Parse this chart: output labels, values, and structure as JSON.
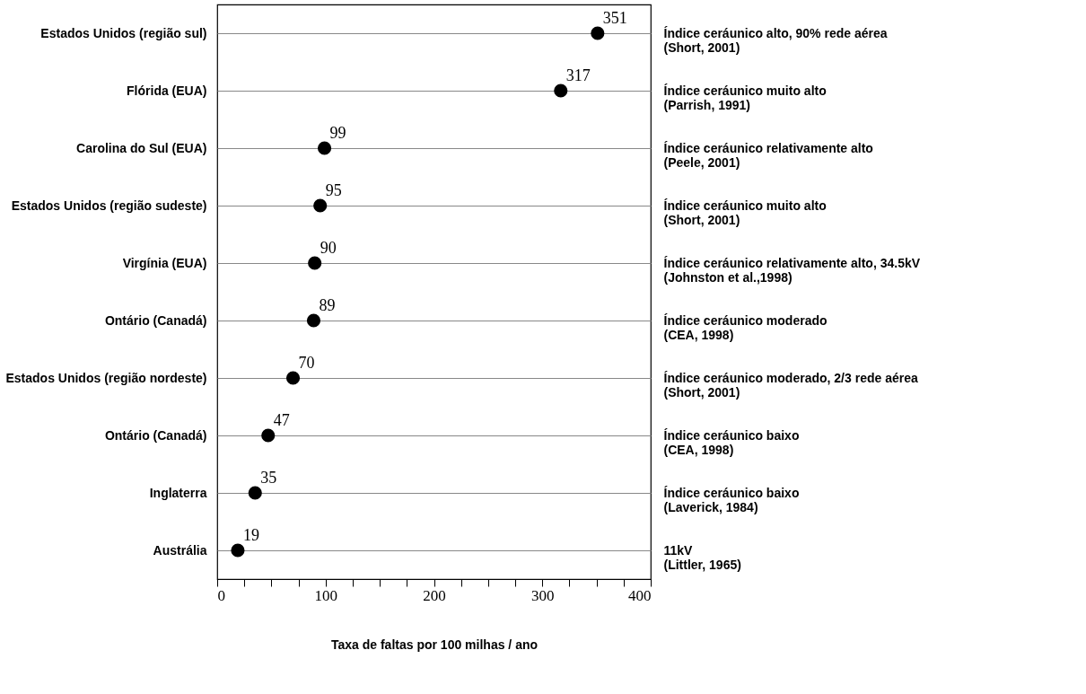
{
  "chart_data": {
    "type": "scatter",
    "orientation": "horizontal",
    "xlabel": "Taxa de faltas por 100 milhas / ano",
    "categories": [
      "Estados Unidos (região sul)",
      "Flórida (EUA)",
      "Carolina do Sul (EUA)",
      "Estados Unidos (região sudeste)",
      "Virgínia (EUA)",
      "Ontário (Canadá)",
      "Estados Unidos (região nordeste)",
      "Ontário (Canadá)",
      "Inglaterra",
      "Austrália"
    ],
    "y2_categories": [
      "Índice ceráunico alto, 90% rede aérea\n(Short, 2001)",
      "Índice ceráunico muito alto\n(Parrish, 1991)",
      "Índice ceráunico relativamente alto\n(Peele, 2001)",
      "Índice ceráunico muito alto\n(Short, 2001)",
      "Índice ceráunico relativamente alto, 34.5kV\n(Johnston et al.,1998)",
      "Índice ceráunico moderado\n(CEA, 1998)",
      "Índice ceráunico moderado, 2/3 rede aérea\n(Short, 2001)",
      "Índice ceráunico baixo\n(CEA, 1998)",
      "Índice ceráunico baixo\n(Laverick, 1984)",
      "11kV\n(Littler, 1965)"
    ],
    "series": [
      {
        "color": "#000000",
        "values": [
          351,
          317,
          99,
          95,
          90,
          89,
          70,
          47,
          35,
          19
        ]
      }
    ],
    "data_labels": true,
    "marker": "circle",
    "grid": "y",
    "legend": false,
    "xlim": [
      0,
      400
    ],
    "xticks": [
      0,
      {
        "value": 25,
        "label": null
      },
      {
        "value": 50,
        "label": null
      },
      {
        "value": 75,
        "label": null
      },
      100,
      {
        "value": 125,
        "label": null
      },
      {
        "value": 150,
        "label": null
      },
      {
        "value": 175,
        "label": null
      },
      200,
      {
        "value": 225,
        "label": null
      },
      {
        "value": 250,
        "label": null
      },
      {
        "value": 275,
        "label": null
      },
      300,
      {
        "value": 325,
        "label": null
      },
      {
        "value": 350,
        "label": null
      },
      {
        "value": 375,
        "label": null
      },
      400
    ]
  }
}
